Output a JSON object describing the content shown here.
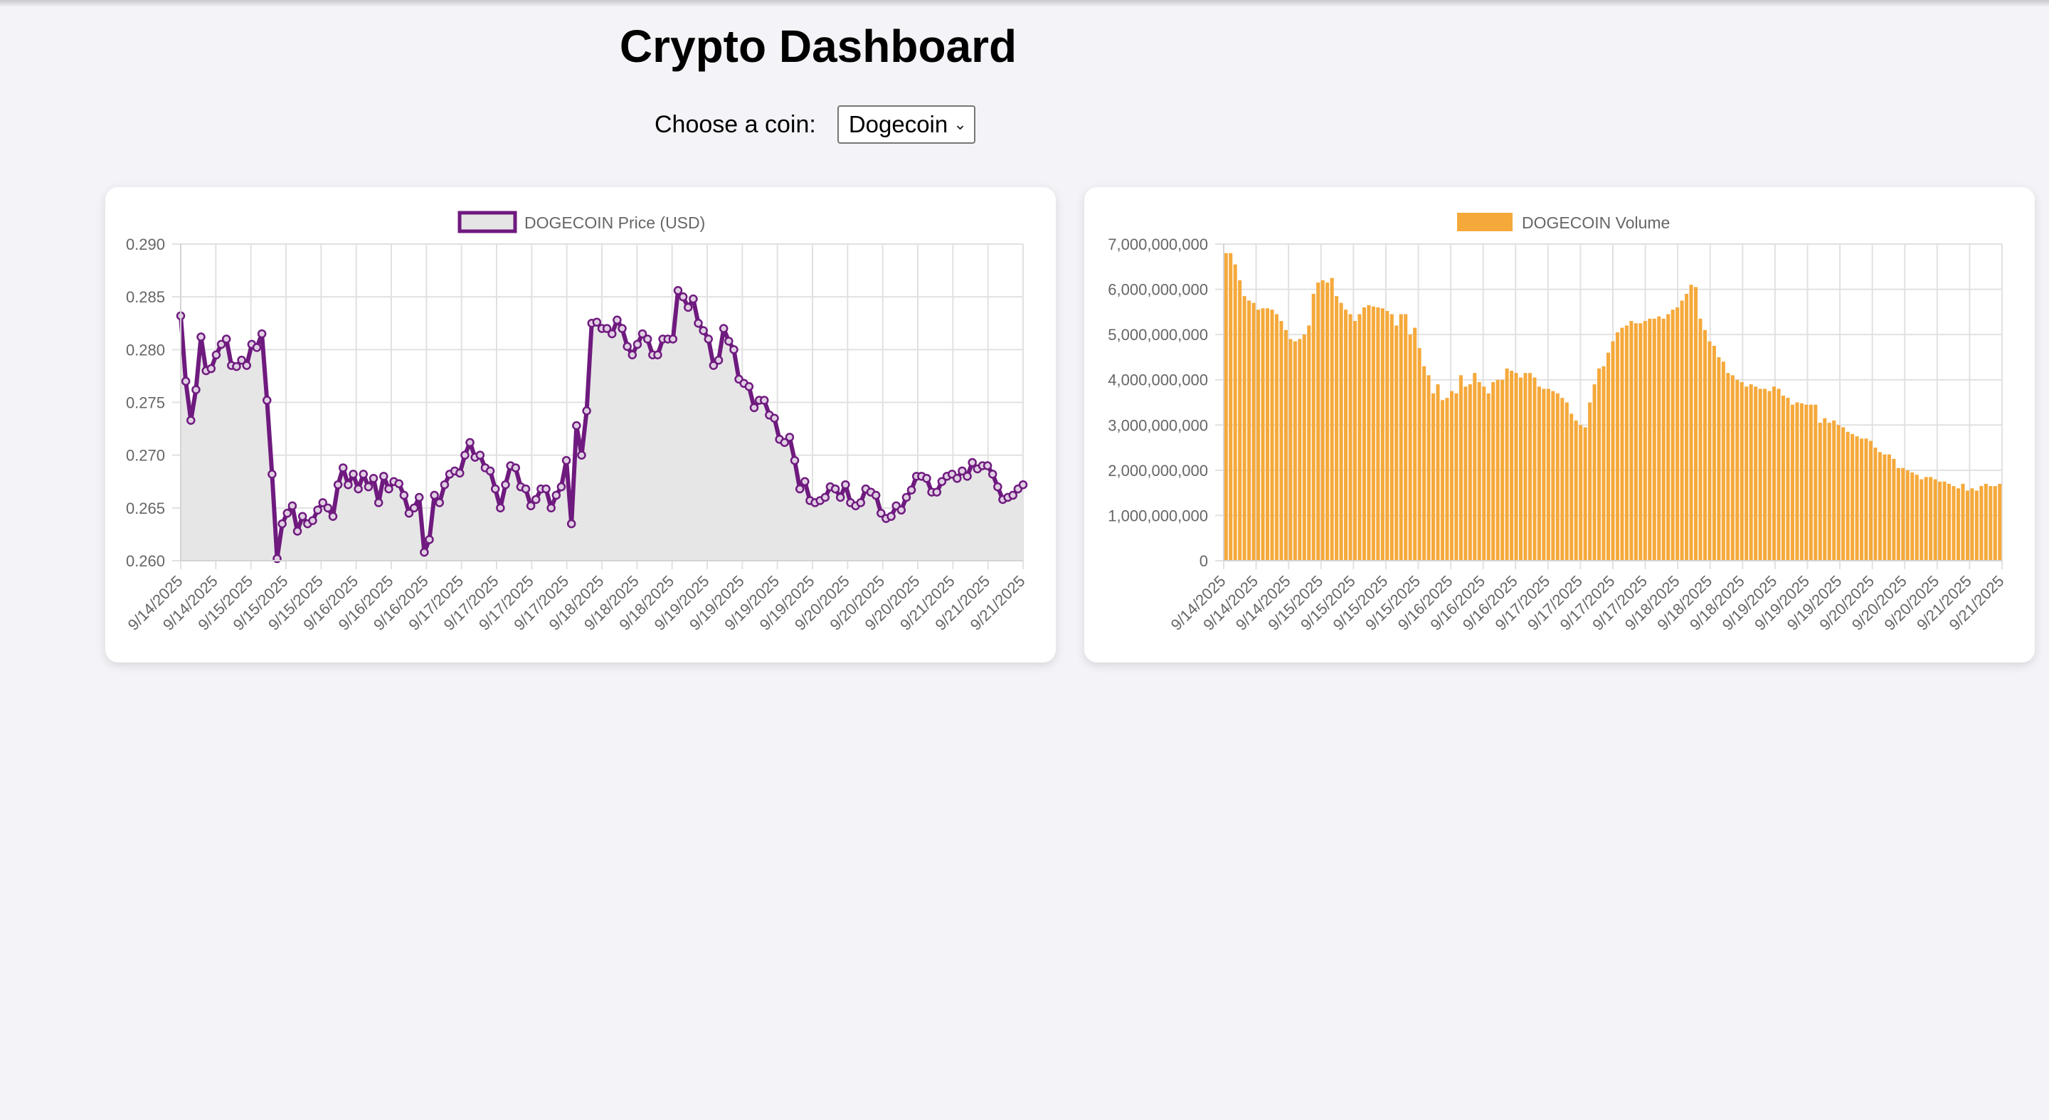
{
  "page": {
    "title": "Crypto Dashboard",
    "coin_label": "Choose a coin:",
    "coin_selected": "Dogecoin"
  },
  "chart_data": [
    {
      "type": "line",
      "legend": "DOGECOIN Price (USD)",
      "color": "#6f1a7f",
      "fill": "#e5e5e5",
      "grid": true,
      "legend_position": "top",
      "ylim": [
        0.26,
        0.29
      ],
      "yticks": [
        "0.290",
        "0.285",
        "0.280",
        "0.275",
        "0.270",
        "0.265",
        "0.260"
      ],
      "xticks": [
        "9/14/2025",
        "9/14/2025",
        "9/15/2025",
        "9/15/2025",
        "9/15/2025",
        "9/16/2025",
        "9/16/2025",
        "9/16/2025",
        "9/17/2025",
        "9/17/2025",
        "9/17/2025",
        "9/17/2025",
        "9/18/2025",
        "9/18/2025",
        "9/18/2025",
        "9/19/2025",
        "9/19/2025",
        "9/19/2025",
        "9/19/2025",
        "9/20/2025",
        "9/20/2025",
        "9/20/2025",
        "9/21/2025",
        "9/21/2025",
        "9/21/2025"
      ],
      "values": [
        0.2832,
        0.277,
        0.2733,
        0.2762,
        0.2812,
        0.278,
        0.2782,
        0.2795,
        0.2805,
        0.281,
        0.2785,
        0.2784,
        0.279,
        0.2785,
        0.2805,
        0.2802,
        0.2815,
        0.2752,
        0.2682,
        0.2602,
        0.2635,
        0.2645,
        0.2652,
        0.2628,
        0.2642,
        0.2635,
        0.2638,
        0.2648,
        0.2655,
        0.265,
        0.2642,
        0.2672,
        0.2688,
        0.2672,
        0.2682,
        0.2668,
        0.2682,
        0.267,
        0.2678,
        0.2655,
        0.268,
        0.2668,
        0.2675,
        0.2673,
        0.2662,
        0.2645,
        0.265,
        0.266,
        0.2608,
        0.262,
        0.2662,
        0.2655,
        0.2672,
        0.2682,
        0.2685,
        0.2683,
        0.27,
        0.2712,
        0.2698,
        0.27,
        0.2688,
        0.2685,
        0.2668,
        0.265,
        0.2672,
        0.269,
        0.2688,
        0.267,
        0.2668,
        0.2652,
        0.2658,
        0.2668,
        0.2668,
        0.265,
        0.2662,
        0.267,
        0.2695,
        0.2635,
        0.2728,
        0.27,
        0.2742,
        0.2825,
        0.2826,
        0.282,
        0.282,
        0.2815,
        0.2828,
        0.282,
        0.2803,
        0.2795,
        0.2805,
        0.2815,
        0.281,
        0.2795,
        0.2795,
        0.281,
        0.281,
        0.281,
        0.2856,
        0.285,
        0.284,
        0.2848,
        0.2825,
        0.2818,
        0.281,
        0.2785,
        0.279,
        0.282,
        0.2808,
        0.28,
        0.2772,
        0.2768,
        0.2765,
        0.2745,
        0.2752,
        0.2752,
        0.2738,
        0.2735,
        0.2715,
        0.2712,
        0.2717,
        0.2695,
        0.2668,
        0.2675,
        0.2657,
        0.2655,
        0.2657,
        0.266,
        0.267,
        0.2668,
        0.266,
        0.2672,
        0.2655,
        0.2652,
        0.2655,
        0.2668,
        0.2665,
        0.2662,
        0.2645,
        0.264,
        0.2642,
        0.2652,
        0.2648,
        0.266,
        0.2667,
        0.268,
        0.268,
        0.2678,
        0.2665,
        0.2665,
        0.2675,
        0.268,
        0.2682,
        0.2678,
        0.2685,
        0.268,
        0.2693,
        0.2687,
        0.269,
        0.269,
        0.2682,
        0.267,
        0.2658,
        0.266,
        0.2662,
        0.2668,
        0.2672
      ]
    },
    {
      "type": "bar",
      "legend": "DOGECOIN Volume",
      "color": "#f5a93b",
      "grid": true,
      "legend_position": "top",
      "ylim": [
        0,
        7000000000
      ],
      "yticks": [
        "7,000,000,000",
        "6,000,000,000",
        "5,000,000,000",
        "4,000,000,000",
        "3,000,000,000",
        "2,000,000,000",
        "1,000,000,000",
        "0"
      ],
      "xticks": [
        "9/14/2025",
        "9/14/2025",
        "9/14/2025",
        "9/15/2025",
        "9/15/2025",
        "9/15/2025",
        "9/15/2025",
        "9/16/2025",
        "9/16/2025",
        "9/16/2025",
        "9/17/2025",
        "9/17/2025",
        "9/17/2025",
        "9/17/2025",
        "9/18/2025",
        "9/18/2025",
        "9/18/2025",
        "9/19/2025",
        "9/19/2025",
        "9/19/2025",
        "9/20/2025",
        "9/20/2025",
        "9/20/2025",
        "9/21/2025",
        "9/21/2025"
      ],
      "values": [
        6800000000,
        6800000000,
        6550000000,
        6200000000,
        5850000000,
        5750000000,
        5700000000,
        5550000000,
        5580000000,
        5580000000,
        5550000000,
        5450000000,
        5300000000,
        5100000000,
        4900000000,
        4850000000,
        4900000000,
        5000000000,
        5200000000,
        5900000000,
        6150000000,
        6200000000,
        6150000000,
        6250000000,
        5850000000,
        5700000000,
        5550000000,
        5450000000,
        5300000000,
        5450000000,
        5600000000,
        5650000000,
        5620000000,
        5600000000,
        5580000000,
        5520000000,
        5450000000,
        5200000000,
        5450000000,
        5450000000,
        5000000000,
        5150000000,
        4700000000,
        4300000000,
        4100000000,
        3700000000,
        3900000000,
        3550000000,
        3600000000,
        3750000000,
        3700000000,
        4100000000,
        3850000000,
        3900000000,
        4150000000,
        3950000000,
        3850000000,
        3700000000,
        3950000000,
        4000000000,
        4000000000,
        4250000000,
        4200000000,
        4150000000,
        4050000000,
        4150000000,
        4150000000,
        4050000000,
        3850000000,
        3800000000,
        3800000000,
        3750000000,
        3700000000,
        3600000000,
        3500000000,
        3250000000,
        3100000000,
        3000000000,
        2950000000,
        3500000000,
        3900000000,
        4250000000,
        4300000000,
        4600000000,
        4850000000,
        5050000000,
        5150000000,
        5200000000,
        5300000000,
        5250000000,
        5250000000,
        5300000000,
        5350000000,
        5350000000,
        5400000000,
        5350000000,
        5450000000,
        5550000000,
        5600000000,
        5750000000,
        5900000000,
        6100000000,
        6050000000,
        5350000000,
        5100000000,
        4850000000,
        4750000000,
        4500000000,
        4400000000,
        4150000000,
        4100000000,
        4000000000,
        3950000000,
        3850000000,
        3900000000,
        3850000000,
        3800000000,
        3800000000,
        3750000000,
        3850000000,
        3800000000,
        3650000000,
        3600000000,
        3450000000,
        3500000000,
        3480000000,
        3450000000,
        3450000000,
        3450000000,
        3050000000,
        3150000000,
        3050000000,
        3100000000,
        3000000000,
        2950000000,
        2850000000,
        2800000000,
        2750000000,
        2700000000,
        2700000000,
        2650000000,
        2500000000,
        2400000000,
        2350000000,
        2350000000,
        2250000000,
        2050000000,
        2050000000,
        2000000000,
        1950000000,
        1900000000,
        1800000000,
        1850000000,
        1850000000,
        1800000000,
        1750000000,
        1750000000,
        1700000000,
        1650000000,
        1600000000,
        1700000000,
        1550000000,
        1600000000,
        1550000000,
        1650000000,
        1700000000,
        1650000000,
        1650000000,
        1700000000
      ]
    }
  ]
}
